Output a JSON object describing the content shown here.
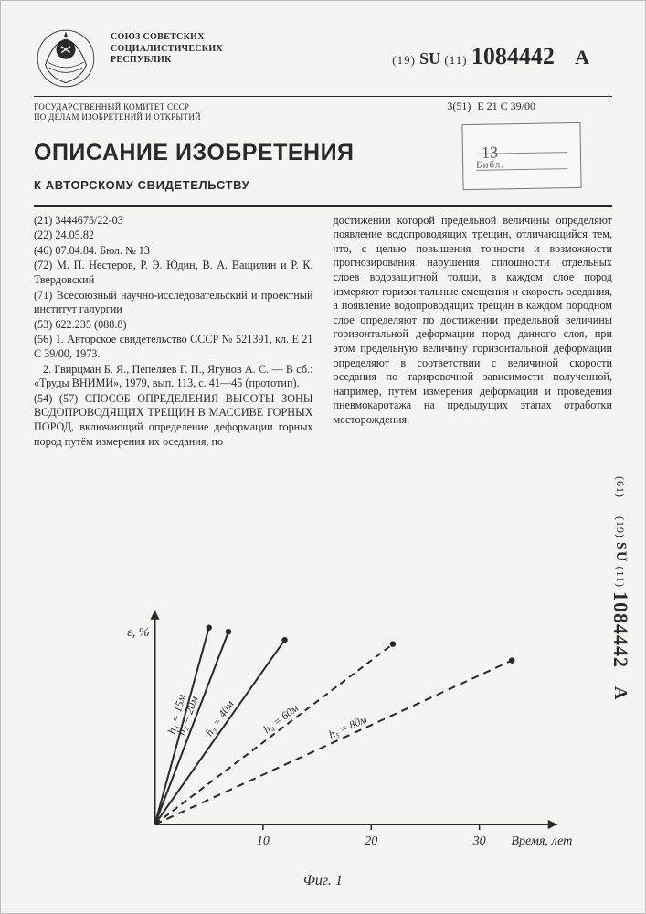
{
  "header": {
    "union_lines": [
      "СОЮЗ СОВЕТСКИХ",
      "СОЦИАЛИСТИЧЕСКИХ",
      "РЕСПУБЛИК"
    ],
    "pub_prefix": "(19)",
    "pub_cc": "SU",
    "pub_mid": "(11)",
    "pub_number": "1084442",
    "pub_kind": "A",
    "ipc_prefix": "3(51)",
    "ipc": "Е 21 С 39/00",
    "committee": "ГОСУДАРСТВЕННЫЙ КОМИТЕТ СССР\nПО ДЕЛАМ ИЗОБРЕТЕНИЙ И ОТКРЫТИЙ",
    "title": "ОПИСАНИЕ ИЗОБРЕТЕНИЯ",
    "subtitle": "К АВТОРСКОМУ СВИДЕТЕЛЬСТВУ",
    "tab61": "(61)"
  },
  "meta": {
    "l21": "(21) 3444675/22-03",
    "l22": "(22) 24.05.82",
    "l46": "(46) 07.04.84. Бюл. № 13",
    "l72": "(72) М. П. Нестеров, Р. Э. Юдин, В. А. Ващилин и Р. К. Твердовский",
    "l71": "(71) Всесоюзный научно-исследовательский и проектный институт галургии",
    "l53": "(53) 622.235 (088.8)",
    "l56a": "(56) 1. Авторское свидетельство СССР № 521391, кл. Е 21 С 39/00, 1973.",
    "l56b": "2. Гвирцман Б. Я., Пепеляев Г. П., Ягунов А. С. — В сб.: «Труды ВНИМИ», 1979, вып. 113, с. 41—45 (прототип).",
    "l54_57": "(54) (57) СПОСОБ ОПРЕДЕЛЕНИЯ ВЫСОТЫ ЗОНЫ ВОДОПРОВОДЯЩИХ ТРЕЩИН В МАССИВЕ ГОРНЫХ ПОРОД, включающий определение деформации горных пород путём измерения их оседания, по"
  },
  "abstract_right": "достижении которой предельной величины определяют появление водопроводящих трещин, отличающийся тем, что, с целью повышения точности и возможности прогнозирования нарушения сплошности отдельных слоев водозащитной толщи, в каждом слое пород измеряют горизонтальные смещения и скорость оседания, а появление водопроводящих трещин в каждом породном слое определяют по достижении предельной величины горизонтальной деформации пород данного слоя, при этом предельную величину горизонтальной деформации определяют в соответствии с величиной скорости оседания по тарировочной зависимости полученной, например, путём измерения деформации и проведения пневмокаротажа на предыдущих этапах отработки месторождения.",
  "stamp": {
    "shelf": "13",
    "lib": "Библ."
  },
  "figure": {
    "type": "line",
    "caption": "Фиг. 1",
    "xlabel": "Время, лет",
    "ylabel": "ε, %",
    "xlim": [
      0,
      36
    ],
    "ylim": [
      0,
      10
    ],
    "xticks": [
      10,
      20,
      30
    ],
    "background_color": "#f4f4f0",
    "axis_color": "#2a2a2a",
    "axis_width": 2,
    "line_color": "#2a2a2a",
    "line_width": 2,
    "marker_radius": 3.2,
    "label_fontsize": 14,
    "tick_fontsize": 14,
    "series": [
      {
        "label": "h₁ = 15м",
        "end_x": 5.0,
        "end_y": 9.6,
        "dash": ""
      },
      {
        "label": "h₂ = 20м",
        "end_x": 6.8,
        "end_y": 9.4,
        "dash": ""
      },
      {
        "label": "h₃ = 40м",
        "end_x": 12.0,
        "end_y": 9.0,
        "dash": ""
      },
      {
        "label": "h₄ = 60м",
        "end_x": 22.0,
        "end_y": 8.8,
        "dash": "7,5"
      },
      {
        "label": "h₅ = 80м",
        "end_x": 33.0,
        "end_y": 8.0,
        "dash": "8,6"
      }
    ]
  }
}
